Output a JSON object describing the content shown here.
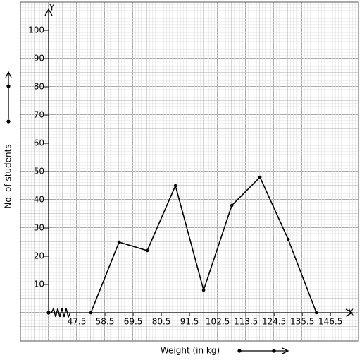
{
  "chart_data": {
    "type": "line",
    "x_label": "Weight (in kg)",
    "y_label": "No. of students",
    "x_axis_name": "X",
    "y_axis_name": "Y",
    "x": [
      53,
      64,
      75,
      86,
      97,
      108,
      119,
      130,
      141
    ],
    "values": [
      0,
      25,
      22,
      45,
      8,
      38,
      48,
      26,
      0
    ],
    "color": "#000000",
    "xlim": [
      36.5,
      152.5
    ],
    "ylim": [
      0,
      108
    ],
    "xticks": [
      47.5,
      58.5,
      69.5,
      80.5,
      91.5,
      102.5,
      113.5,
      124.5,
      135.5,
      146.5
    ],
    "yticks": [
      10,
      20,
      30,
      40,
      50,
      60,
      70,
      80,
      90,
      100
    ]
  }
}
